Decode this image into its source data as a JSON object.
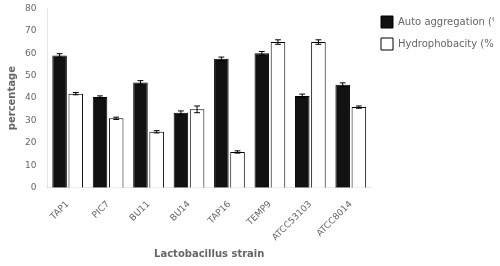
{
  "chart_data": {
    "type": "bar",
    "xlabel": "Lactobacillus strain",
    "ylabel": "percentage",
    "categories": [
      "TAP1",
      "PIC7",
      "BU11",
      "BU14",
      "TAP16",
      "TEMP9",
      "ATCC53103",
      "ATCC8014"
    ],
    "series": [
      {
        "name": "Auto aggregation (%)",
        "color": "#111111",
        "values": [
          59,
          40.5,
          47,
          33.5,
          57.5,
          60,
          41,
          46
        ],
        "errors": [
          0.8,
          0.5,
          0.8,
          0.8,
          0.8,
          0.8,
          0.8,
          0.8
        ]
      },
      {
        "name": "Hydrophobacity (%",
        "color": "#ffffff",
        "values": [
          42,
          31,
          25,
          35,
          16,
          65,
          65,
          36
        ],
        "errors": [
          0.5,
          0.5,
          0.5,
          1.5,
          0.5,
          1.0,
          1.0,
          0.5
        ]
      }
    ],
    "ylim": [
      0,
      80
    ],
    "yticks": [
      0,
      10,
      20,
      30,
      40,
      50,
      60,
      70,
      80
    ],
    "grid": false,
    "legend": "right",
    "background_color": "#ffffff"
  }
}
